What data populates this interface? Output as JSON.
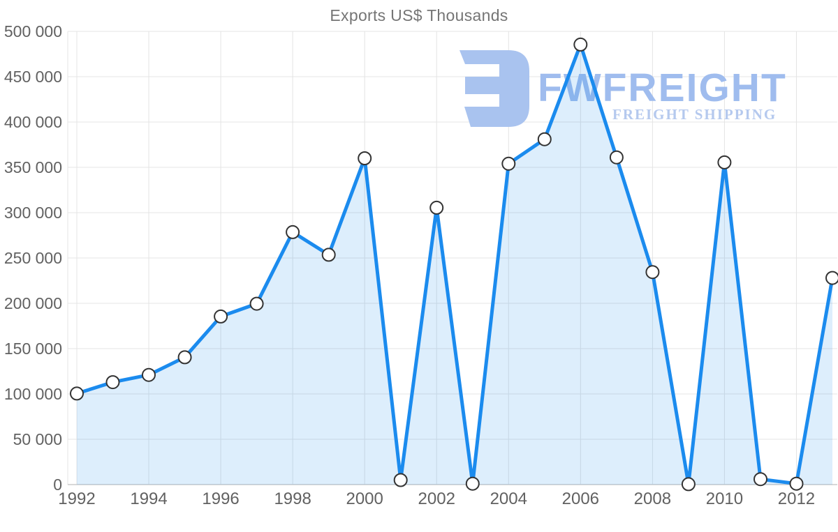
{
  "title": "Exports US$ Thousands",
  "watermark": {
    "brand": "FWFREIGHT",
    "tagline": "FREIGHT SHIPPING",
    "logo_icon": "fwfreight-logo-mark",
    "logo_color": "#a9c3ef",
    "brand_color": "#9fbcee",
    "tagline_color": "#b5c9ee"
  },
  "colors": {
    "line": "#1b8bee",
    "area_fill": "rgba(30,139,238,0.15)",
    "marker_fill": "#ffffff",
    "marker_stroke": "#333333",
    "grid": "#e4e4e4",
    "axis_line": "#cccccc",
    "tick_label": "#616161",
    "title_color": "#757575",
    "background": "#ffffff"
  },
  "chart_data": {
    "type": "area",
    "title": "Exports US$ Thousands",
    "xlabel": "",
    "ylabel": "",
    "x": [
      1992,
      1993,
      1994,
      1995,
      1996,
      1997,
      1998,
      1999,
      2000,
      2001,
      2002,
      2003,
      2004,
      2005,
      2006,
      2007,
      2008,
      2009,
      2010,
      2011,
      2012,
      2013
    ],
    "values": [
      100500,
      113000,
      121000,
      140500,
      185500,
      199500,
      278500,
      253500,
      360000,
      5000,
      305500,
      1000,
      354000,
      381000,
      485500,
      361000,
      234500,
      500,
      355500,
      6000,
      1000,
      228000
    ],
    "series_name": "Exports US$ Thousands",
    "ylim": [
      0,
      500000
    ],
    "ytick_step": 50000,
    "ytick_labels": [
      "0",
      "50 000",
      "100 000",
      "150 000",
      "200 000",
      "250 000",
      "300 000",
      "350 000",
      "400 000",
      "450 000",
      "500 000"
    ],
    "xtick_labels": [
      "1992",
      "1994",
      "1996",
      "1998",
      "2000",
      "2002",
      "2004",
      "2006",
      "2008",
      "2010",
      "2012"
    ],
    "grid": true,
    "legend": false,
    "marker": "circle",
    "line_width": 5,
    "marker_radius": 9
  }
}
